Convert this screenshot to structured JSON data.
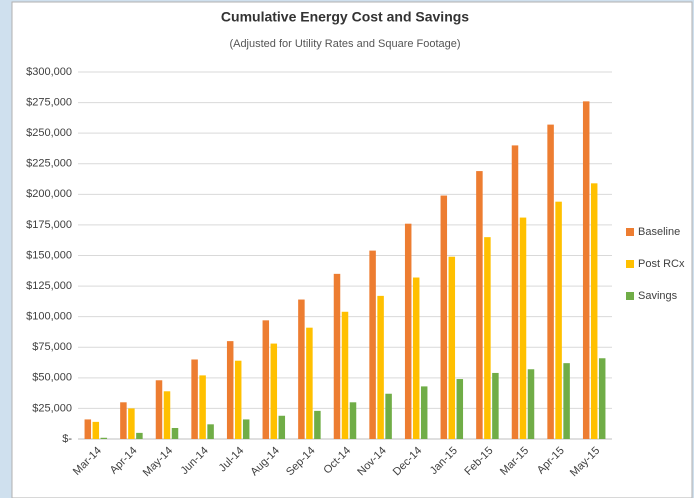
{
  "chart_data": {
    "type": "bar",
    "title": "Cumulative Energy Cost and Savings",
    "subtitle": "(Adjusted for Utility Rates and Square Footage)",
    "categories": [
      "Mar-14",
      "Apr-14",
      "May-14",
      "Jun-14",
      "Jul-14",
      "Aug-14",
      "Sep-14",
      "Oct-14",
      "Nov-14",
      "Dec-14",
      "Jan-15",
      "Feb-15",
      "Mar-15",
      "Apr-15",
      "May-15"
    ],
    "series": [
      {
        "name": "Baseline",
        "color": "#ed7d31",
        "values": [
          16000,
          30000,
          48000,
          65000,
          80000,
          97000,
          114000,
          135000,
          154000,
          176000,
          199000,
          219000,
          240000,
          257000,
          276000
        ]
      },
      {
        "name": "Post RCx",
        "color": "#ffc000",
        "values": [
          14000,
          25000,
          39000,
          52000,
          64000,
          78000,
          91000,
          104000,
          117000,
          132000,
          149000,
          165000,
          181000,
          194000,
          209000
        ]
      },
      {
        "name": "Savings",
        "color": "#70ad47",
        "values": [
          1000,
          5000,
          9000,
          12000,
          16000,
          19000,
          23000,
          30000,
          37000,
          43000,
          49000,
          54000,
          57000,
          62000,
          66000
        ]
      }
    ],
    "ylim": [
      0,
      300000
    ],
    "yticks": [
      {
        "value": 0,
        "label": "$-"
      },
      {
        "value": 25000,
        "label": "$25,000"
      },
      {
        "value": 50000,
        "label": "$50,000"
      },
      {
        "value": 75000,
        "label": "$75,000"
      },
      {
        "value": 100000,
        "label": "$100,000"
      },
      {
        "value": 125000,
        "label": "$125,000"
      },
      {
        "value": 150000,
        "label": "$150,000"
      },
      {
        "value": 175000,
        "label": "$175,000"
      },
      {
        "value": 200000,
        "label": "$200,000"
      },
      {
        "value": 225000,
        "label": "$225,000"
      },
      {
        "value": 250000,
        "label": "$250,000"
      },
      {
        "value": 275000,
        "label": "$275,000"
      },
      {
        "value": 300000,
        "label": "$300,000"
      }
    ],
    "grid": true,
    "legend": "right"
  }
}
